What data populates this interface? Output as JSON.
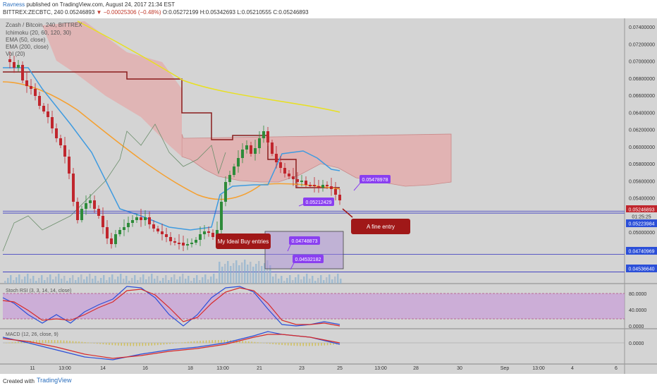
{
  "header": {
    "author": "Ravness",
    "published": "published on TradingView.com, August 24, 2017 21:34 EST",
    "symbol": "BITTREX:ZECBTC, 240",
    "last": "0.05246893",
    "change": "−0.00025306 (−0.48%)",
    "ohlc": "O:0.05272199 H:0.05342693 L:0.05210555 C:0.05246893"
  },
  "legend": {
    "title": "Zcash / Bitcoin, 240, BITTREX",
    "items": [
      "Ichimoku (20, 60, 120, 30)",
      "EMA (50, close)",
      "EMA (200, close)",
      "Vol (20)"
    ]
  },
  "footer": {
    "created": "Created with",
    "brand": "TradingView"
  },
  "colors": {
    "bg": "#d4d4d4",
    "up": "#2e8b3a",
    "down": "#c0262d",
    "ema50": "#f5a030",
    "ema200": "#e8e020",
    "tenkan": "#3f9be0",
    "kijun": "#8a1c1c",
    "chikou": "#6b8e6b",
    "cloud": "#e5a8a8",
    "rsi_k": "#2b4fd8",
    "rsi_d": "#d72a2a",
    "rsi_band": "#c79ad8",
    "macd": "#2b4fd8",
    "signal": "#d72a2a",
    "label_purple": "#8a3ff0",
    "label_red": "#a01818",
    "hline": "#3030c0"
  },
  "chart_data": {
    "type": "candlestick",
    "title": "Zcash / Bitcoin, 240, BITTREX",
    "x_labels": [
      "11",
      "13:00",
      "14",
      "16",
      "18",
      "13:00",
      "21",
      "23",
      "25",
      "13:00",
      "28",
      "30",
      "Sep",
      "13:00",
      "4",
      "6"
    ],
    "y_ticks": [
      "0.07400000",
      "0.07200000",
      "0.07000000",
      "0.06800000",
      "0.06600000",
      "0.06400000",
      "0.06200000",
      "0.06000000",
      "0.05800000",
      "0.05600000",
      "0.05400000",
      "0.05000000",
      "0.04600000",
      "0.04400000"
    ],
    "ylim": [
      0.044,
      0.075
    ],
    "price_badges": [
      "0.05246893",
      "01:25:25",
      "0.05223984",
      "0.04740969",
      "0.04536640"
    ],
    "annotations": {
      "ideal_buy": "My Ideal Buy entries",
      "fine_entry": "A fine entry",
      "labels": [
        "0.05478978",
        "0.05212429",
        "0.04748873",
        "0.04532182"
      ]
    },
    "horizontal_lines": [
      0.05246893,
      0.05223984,
      0.04740969,
      0.0453664
    ],
    "stoch_rsi": {
      "title": "Stoch RSI (3, 3, 14, 14, close)",
      "ticks": [
        "80.0000",
        "40.0000",
        "0.0000"
      ]
    },
    "macd": {
      "title": "MACD (12, 26, close, 9)",
      "ticks": [
        "0.0000"
      ]
    }
  }
}
